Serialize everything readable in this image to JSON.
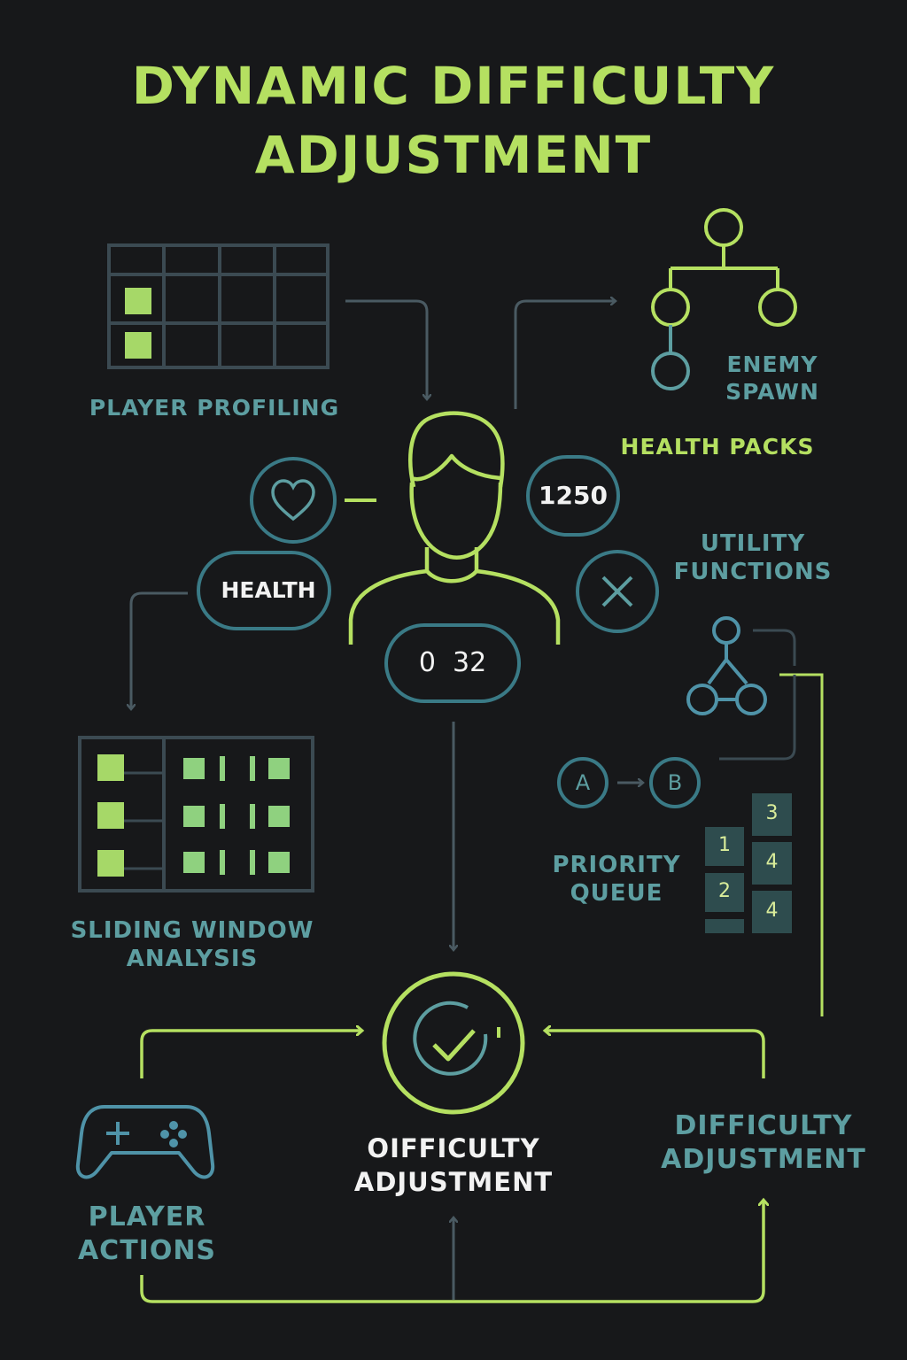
{
  "title_line1": "DYNAMIC DIFFICULTY",
  "title_line2": "ADJUSTMENT",
  "labels": {
    "player_profiling": "PLAYER PROFILING",
    "enemy_spawn_1": "ENEMY",
    "enemy_spawn_2": "SPAWN",
    "health_packs": "HEALTH PACKS",
    "utility_1": "UTILITY",
    "utility_2": "FUNCTIONS",
    "sliding_1": "SLIDING WINDOW",
    "sliding_2": "ANALYSIS",
    "priority_1": "PRIORITY",
    "priority_2": "QUEUE",
    "center_1": "OIFFICULTY",
    "center_2": "ADJUSTMENT",
    "right_1": "DIFFICULTY",
    "right_2": "ADJUSTMENT",
    "actions_1": "PLAYER",
    "actions_2": "ACTIONS"
  },
  "player_stats": {
    "health_label": "HEALTH",
    "score": "1250",
    "counter": "0  32"
  },
  "graph_nodes": {
    "a": "A",
    "b": "B"
  },
  "queue": {
    "left_column": [
      "1",
      "2"
    ],
    "right_column": [
      "3",
      "4",
      "4"
    ]
  },
  "icons": [
    "heart-icon",
    "close-icon",
    "checkmark-icon",
    "gamepad-icon",
    "player-avatar-icon",
    "tree-icon",
    "network-icon"
  ],
  "colors": {
    "background": "#17181a",
    "lime": "#b5e061",
    "teal": "#5d9ea1",
    "slate": "#3b4a52",
    "white": "#f2f2f2"
  }
}
